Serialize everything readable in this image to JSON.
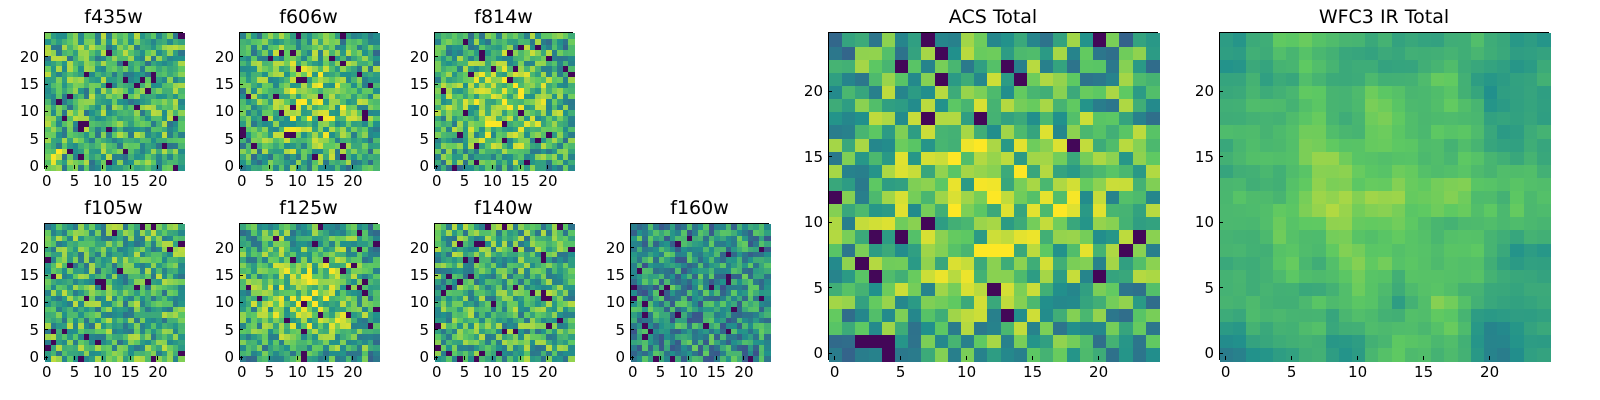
{
  "chart_data": [
    {
      "type": "heatmap",
      "title": "f435w",
      "xticks": [
        0,
        5,
        10,
        15,
        20
      ],
      "yticks": [
        0,
        5,
        10,
        15,
        20
      ],
      "xlim": [
        -0.5,
        24.5
      ],
      "ylim": [
        -0.5,
        24.5
      ],
      "size": [
        25,
        25
      ],
      "seed": 11,
      "bias": "low-left-bright",
      "grid": false
    },
    {
      "type": "heatmap",
      "title": "f606w",
      "xticks": [
        0,
        5,
        10,
        15,
        20
      ],
      "yticks": [
        0,
        5,
        10,
        15,
        20
      ],
      "xlim": [
        -0.5,
        24.5
      ],
      "ylim": [
        -0.5,
        24.5
      ],
      "size": [
        25,
        25
      ],
      "seed": 23,
      "bias": "center-bright",
      "grid": false
    },
    {
      "type": "heatmap",
      "title": "f814w",
      "xticks": [
        0,
        5,
        10,
        15,
        20
      ],
      "yticks": [
        0,
        5,
        10,
        15,
        20
      ],
      "xlim": [
        -0.5,
        24.5
      ],
      "ylim": [
        -0.5,
        24.5
      ],
      "size": [
        25,
        25
      ],
      "seed": 37,
      "bias": "center-bright",
      "grid": false
    },
    {
      "type": "heatmap",
      "title": "f105w",
      "xticks": [
        0,
        5,
        10,
        15,
        20
      ],
      "yticks": [
        0,
        5,
        10,
        15,
        20
      ],
      "xlim": [
        -0.5,
        24.5
      ],
      "ylim": [
        -0.5,
        24.5
      ],
      "size": [
        25,
        25
      ],
      "seed": 41,
      "bias": "none",
      "grid": false
    },
    {
      "type": "heatmap",
      "title": "f125w",
      "xticks": [
        0,
        5,
        10,
        15,
        20
      ],
      "yticks": [
        0,
        5,
        10,
        15,
        20
      ],
      "xlim": [
        -0.5,
        24.5
      ],
      "ylim": [
        -0.5,
        24.5
      ],
      "size": [
        25,
        25
      ],
      "seed": 53,
      "bias": "center-bright",
      "grid": false
    },
    {
      "type": "heatmap",
      "title": "f140w",
      "xticks": [
        0,
        5,
        10,
        15,
        20
      ],
      "yticks": [
        0,
        5,
        10,
        15,
        20
      ],
      "xlim": [
        -0.5,
        24.5
      ],
      "ylim": [
        -0.5,
        24.5
      ],
      "size": [
        25,
        25
      ],
      "seed": 67,
      "bias": "none",
      "grid": false
    },
    {
      "type": "heatmap",
      "title": "f160w",
      "xticks": [
        0,
        5,
        10,
        15,
        20
      ],
      "yticks": [
        0,
        5,
        10,
        15,
        20
      ],
      "xlim": [
        -0.5,
        24.5
      ],
      "ylim": [
        -0.5,
        24.5
      ],
      "size": [
        25,
        25
      ],
      "seed": 79,
      "bias": "dark",
      "grid": false
    },
    {
      "type": "heatmap",
      "title": "ACS Total",
      "xticks": [
        0,
        5,
        10,
        15,
        20
      ],
      "yticks": [
        0,
        5,
        10,
        15,
        20
      ],
      "xlim": [
        -0.5,
        24.5
      ],
      "ylim": [
        -0.5,
        24.5
      ],
      "size": [
        25,
        25
      ],
      "seed": 97,
      "bias": "center-bright",
      "grid": false
    },
    {
      "type": "heatmap",
      "title": "WFC3 IR Total",
      "xticks": [
        0,
        5,
        10,
        15,
        20
      ],
      "yticks": [
        0,
        5,
        10,
        15,
        20
      ],
      "xlim": [
        -0.5,
        24.5
      ],
      "ylim": [
        -0.5,
        24.5
      ],
      "size": [
        25,
        25
      ],
      "seed": 131,
      "bias": "center-bright-smooth",
      "grid": false
    }
  ],
  "colormap": [
    "#440154",
    "#3b528b",
    "#21918c",
    "#5ec962",
    "#fde725"
  ]
}
